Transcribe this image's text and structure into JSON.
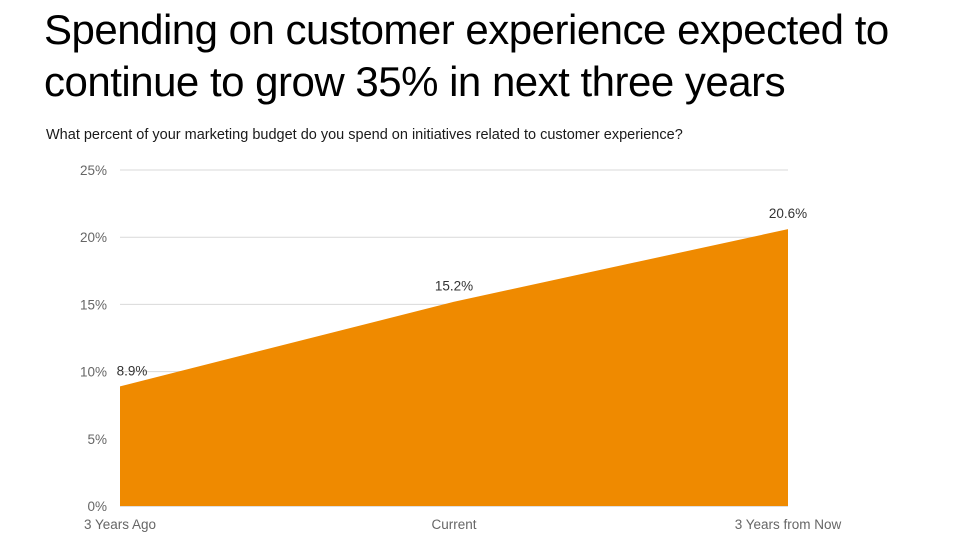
{
  "title": "Spending on customer experience expected to continue to grow 35% in next three years",
  "subtitle": "What percent of your marketing budget do you spend on initiatives related to customer experience?",
  "colors": {
    "area": "#ef8a00",
    "grid": "#d9d9d9",
    "axis": "#bfbfbf"
  },
  "chart_data": {
    "type": "area",
    "categories": [
      "3 Years Ago",
      "Current",
      "3 Years from Now"
    ],
    "values": [
      8.9,
      15.2,
      20.6
    ],
    "data_labels": [
      "8.9%",
      "15.2%",
      "20.6%"
    ],
    "ylim": [
      0,
      25
    ],
    "yticks": [
      0,
      5,
      10,
      15,
      20,
      25
    ],
    "ytick_labels": [
      "0%",
      "5%",
      "10%",
      "15%",
      "20%",
      "25%"
    ],
    "grid": true,
    "legend": "none"
  }
}
